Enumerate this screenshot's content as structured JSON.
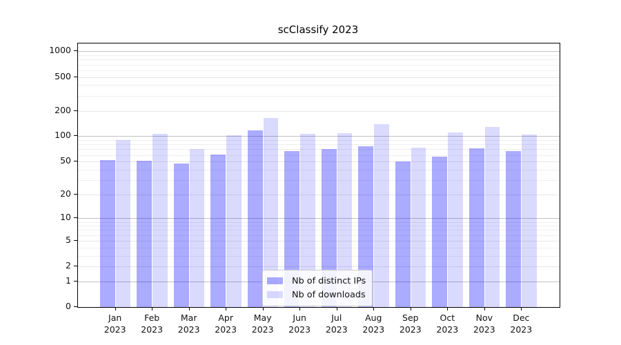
{
  "title": "scClassify 2023",
  "colors": {
    "bar_distinct_ips": "rgba(0,0,255,0.33)",
    "bar_downloads": "rgba(0,0,255,0.145)",
    "grid_major": "#c2c2c2",
    "grid_labeled": "#e6e6e6",
    "grid_minor": "#efefef",
    "axis": "#000000"
  },
  "legend": {
    "position": "bottom-center-inside",
    "items": [
      {
        "label": "Nb of distinct IPs",
        "swatch": "bar_distinct_ips"
      },
      {
        "label": "Nb of downloads",
        "swatch": "bar_downloads"
      }
    ]
  },
  "chart_data": {
    "type": "bar",
    "title": "scClassify 2023",
    "xlabel": "",
    "ylabel": "",
    "yscale": "log1p",
    "ylim": [
      0,
      1236
    ],
    "grid": true,
    "ytick_labels": [
      "0",
      "1",
      "2",
      "5",
      "10",
      "20",
      "50",
      "100",
      "200",
      "500",
      "1000"
    ],
    "yticks": [
      0,
      1,
      2,
      5,
      10,
      20,
      50,
      100,
      200,
      500,
      1000
    ],
    "major_yticks": [
      1,
      10,
      100,
      1000
    ],
    "minor_yticks": [
      3,
      4,
      6,
      7,
      8,
      9,
      30,
      40,
      60,
      70,
      80,
      90,
      300,
      400,
      600,
      700,
      800,
      900
    ],
    "categories": [
      "Jan 2023",
      "Feb 2023",
      "Mar 2023",
      "Apr 2023",
      "May 2023",
      "Jun 2023",
      "Jul 2023",
      "Aug 2023",
      "Sep 2023",
      "Oct 2023",
      "Nov 2023",
      "Dec 2023"
    ],
    "series": [
      {
        "name": "Nb of distinct IPs",
        "color_key": "bar_distinct_ips",
        "values": [
          52,
          51,
          47,
          61,
          117,
          67,
          71,
          76,
          50,
          57,
          72,
          67
        ]
      },
      {
        "name": "Nb of downloads",
        "color_key": "bar_downloads",
        "values": [
          90,
          107,
          70,
          102,
          163,
          107,
          109,
          139,
          73,
          111,
          128,
          104
        ]
      }
    ]
  }
}
